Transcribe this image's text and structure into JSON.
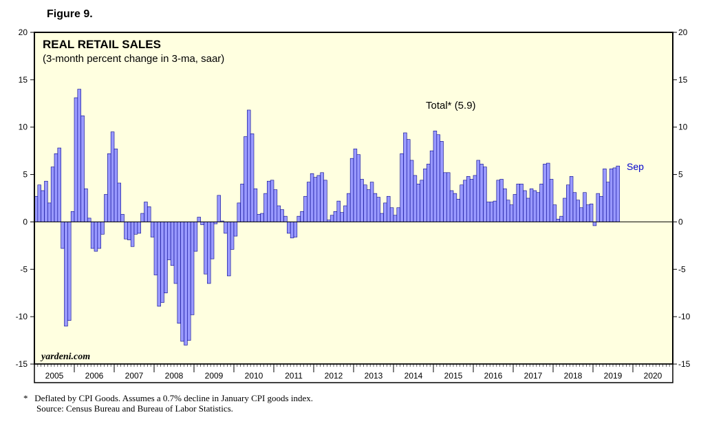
{
  "figure_label": "Figure 9.",
  "watermark": "yardeni.com",
  "series_end_label": "Sep",
  "colors": {
    "plot_bg": "#ffffe0",
    "bar_fill": "#9999ff",
    "bar_stroke": "#00008b",
    "end_label": "#0000cc",
    "frame": "#000000"
  },
  "footnotes": {
    "note": "*   Deflated by CPI Goods. Assumes a 0.7% decline in January CPI goods index.",
    "source": "Source: Census Bureau and Bureau of Labor Statistics."
  },
  "chart_data": {
    "type": "bar",
    "title": "REAL RETAIL SALES",
    "subtitle": "(3-month percent change in 3-ma, saar)",
    "annotation": "Total* (5.9)",
    "start": "2005-01",
    "end": "2019-09",
    "xlim": [
      2005,
      2021
    ],
    "ylim": [
      -15,
      20
    ],
    "yticks": [
      -15,
      -10,
      -5,
      0,
      5,
      10,
      15,
      20
    ],
    "ytick_labels": [
      "-15",
      "-10",
      "-5",
      "0",
      "5",
      "10",
      "15",
      "20"
    ],
    "xtick_labels": [
      "2005",
      "2006",
      "2007",
      "2008",
      "2009",
      "2010",
      "2011",
      "2012",
      "2013",
      "2014",
      "2015",
      "2016",
      "2017",
      "2018",
      "2019",
      "2020"
    ],
    "series": [
      {
        "name": "Total",
        "values": [
          2.7,
          3.9,
          3.3,
          4.3,
          2.0,
          5.8,
          7.2,
          7.8,
          -2.8,
          -11.0,
          -10.4,
          1.1,
          13.1,
          14.0,
          11.2,
          3.5,
          0.4,
          -2.8,
          -3.1,
          -2.8,
          -1.3,
          2.9,
          7.2,
          9.5,
          7.7,
          4.1,
          0.8,
          -1.8,
          -1.9,
          -2.6,
          -1.3,
          -1.2,
          0.9,
          2.1,
          1.6,
          -1.6,
          -5.6,
          -8.9,
          -8.5,
          -7.5,
          -4.0,
          -4.6,
          -6.5,
          -10.7,
          -12.6,
          -13.0,
          -12.5,
          -9.8,
          -3.1,
          0.5,
          -0.3,
          -5.5,
          -6.5,
          -3.9,
          -0.2,
          2.8,
          0.1,
          -1.2,
          -5.7,
          -2.9,
          -1.5,
          2.0,
          4.0,
          9.0,
          11.8,
          9.3,
          3.5,
          0.8,
          0.9,
          3.0,
          4.3,
          4.4,
          3.4,
          1.7,
          1.3,
          0.6,
          -1.2,
          -1.7,
          -1.6,
          0.6,
          1.1,
          2.7,
          4.2,
          5.1,
          4.7,
          4.9,
          5.2,
          4.4,
          0.2,
          0.7,
          1.1,
          2.2,
          1.0,
          1.7,
          3.0,
          6.7,
          7.7,
          7.1,
          4.5,
          3.9,
          3.4,
          4.2,
          3.0,
          2.6,
          0.9,
          2.0,
          2.7,
          1.5,
          0.7,
          1.5,
          7.2,
          9.4,
          8.7,
          6.5,
          4.9,
          4.0,
          4.4,
          5.6,
          6.1,
          7.5,
          9.6,
          9.2,
          8.5,
          5.2,
          5.2,
          3.3,
          3.0,
          2.4,
          3.9,
          4.4,
          4.8,
          4.5,
          4.9,
          6.5,
          6.1,
          5.8,
          2.1,
          2.1,
          2.2,
          4.4,
          4.5,
          3.5,
          2.3,
          1.8,
          2.9,
          4.0,
          4.0,
          3.3,
          2.5,
          3.5,
          3.3,
          3.1,
          4.0,
          6.1,
          6.2,
          4.5,
          1.8,
          0.3,
          0.6,
          2.5,
          3.9,
          4.8,
          3.1,
          2.3,
          1.5,
          3.1,
          1.8,
          1.9,
          -0.4,
          3.0,
          2.7,
          5.6,
          4.2,
          5.6,
          5.7,
          5.9
        ]
      }
    ]
  }
}
